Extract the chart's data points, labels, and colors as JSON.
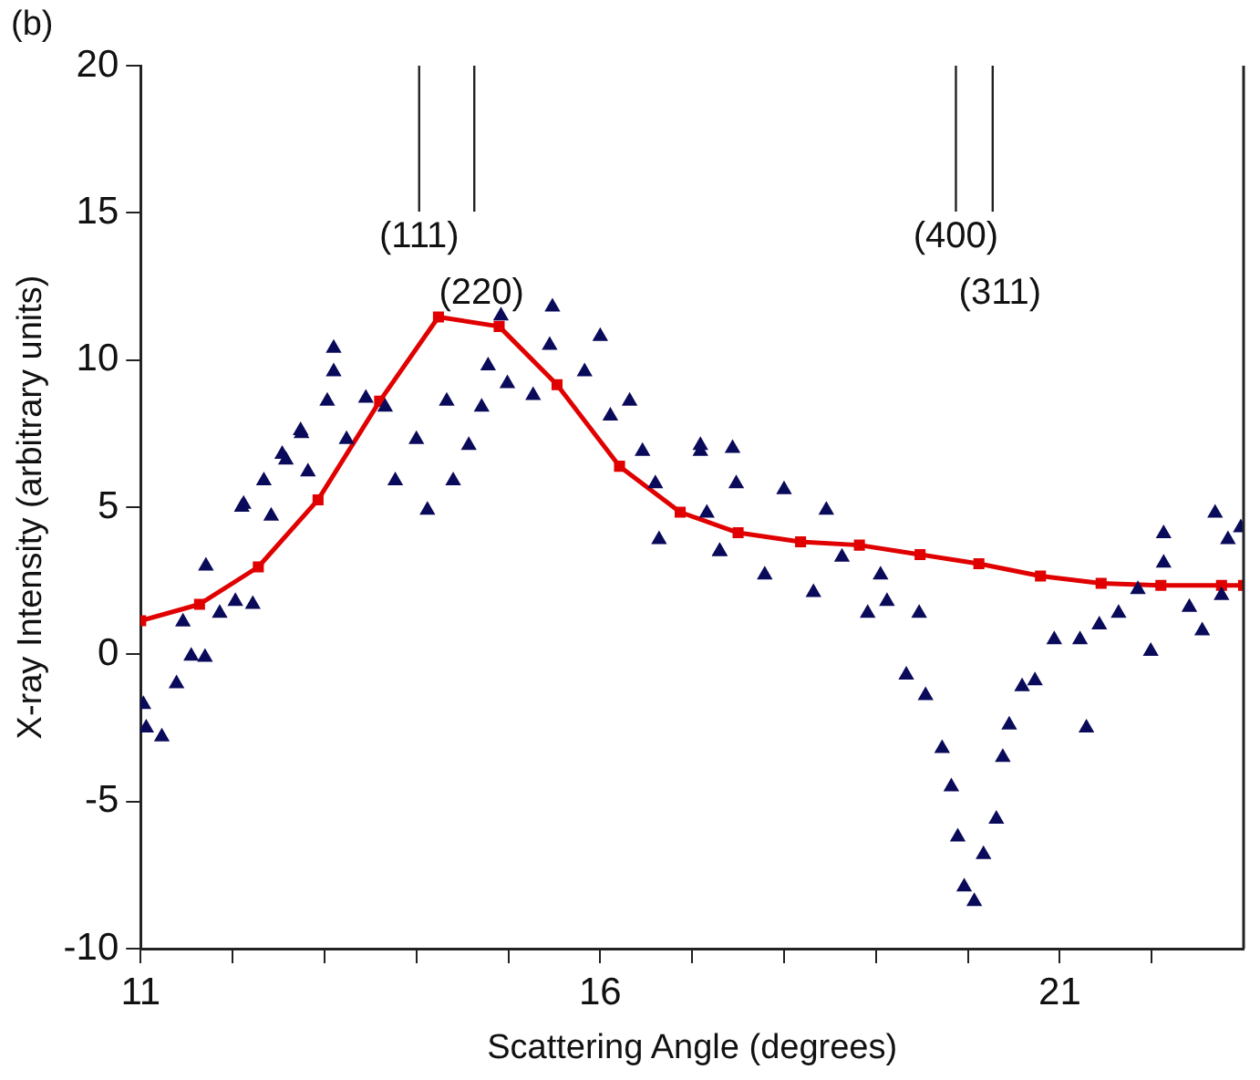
{
  "chart_data": {
    "type": "scatter",
    "title": "(b)",
    "xlabel": "Scattering Angle (degrees)",
    "ylabel": "X-ray Intensity (arbitrary units)",
    "xlim": [
      11,
      23
    ],
    "xticks": [
      11,
      {
        "value": 12,
        "label": null
      },
      {
        "value": 13,
        "label": null
      },
      {
        "value": 14,
        "label": null
      },
      {
        "value": 15,
        "label": null
      },
      16,
      {
        "value": 17,
        "label": null
      },
      {
        "value": 18,
        "label": null
      },
      {
        "value": 19,
        "label": null
      },
      {
        "value": 20,
        "label": null
      },
      21,
      {
        "value": 22,
        "label": null
      }
    ],
    "ylim": [
      -10,
      20
    ],
    "yticks": [
      -10,
      -5,
      0,
      5,
      10,
      15,
      20
    ],
    "grid": false,
    "legend": false,
    "ref_lines": [
      {
        "axis": "x",
        "value": 14.03
      },
      {
        "axis": "x",
        "value": 14.63
      },
      {
        "axis": "x",
        "value": 19.87
      },
      {
        "axis": "x",
        "value": 20.27
      }
    ],
    "annotations": [
      "(111)",
      "(220)",
      "(400)",
      "(311)"
    ],
    "series": [
      {
        "type": "scatter",
        "color": "#0a0a5a",
        "marker": "triangle",
        "x": [
          11.03,
          11.06,
          11.23,
          11.39,
          11.55,
          11.46,
          11.71,
          11.86,
          12.03,
          12.1,
          12.22,
          12.34,
          12.42,
          12.58,
          12.74,
          12.82,
          11.7,
          12.12,
          12.54,
          12.75,
          13.03,
          13.1,
          13.1,
          13.24,
          13.45,
          13.66,
          13.77,
          14.0,
          14.12,
          14.33,
          14.4,
          14.57,
          14.71,
          14.78,
          14.92,
          14.99,
          15.27,
          15.48,
          15.45,
          15.83,
          16.0,
          16.11,
          16.32,
          16.46,
          16.6,
          16.64,
          17.09,
          17.16,
          17.3,
          17.48,
          17.09,
          17.44,
          17.3,
          17.79,
          18.0,
          18.46,
          18.32,
          18.63,
          19.05,
          18.91,
          19.12,
          19.47,
          19.33,
          19.54,
          19.72,
          19.82,
          19.89,
          19.96,
          20.07,
          20.17,
          20.31,
          20.38,
          20.45,
          20.59,
          20.73,
          20.94,
          21.22,
          21.29,
          21.43,
          21.64,
          21.85,
          22.13,
          21.99,
          22.13,
          22.55,
          22.41,
          22.69,
          22.83,
          22.97,
          22.76
        ],
        "values": [
          -1.7,
          -2.5,
          -2.8,
          -1.0,
          -0.06,
          1.1,
          3.0,
          1.4,
          1.8,
          5.0,
          1.7,
          5.9,
          4.7,
          6.6,
          7.6,
          6.2,
          -0.1,
          5.1,
          6.8,
          7.5,
          8.6,
          10.4,
          9.6,
          7.3,
          8.7,
          8.4,
          5.9,
          7.3,
          4.9,
          8.6,
          5.9,
          7.1,
          8.4,
          9.8,
          11.5,
          9.2,
          8.8,
          11.8,
          10.5,
          9.6,
          10.8,
          8.1,
          8.6,
          6.9,
          5.8,
          3.9,
          7.1,
          4.8,
          3.5,
          5.8,
          6.9,
          7.0,
          3.5,
          2.7,
          5.6,
          4.9,
          2.1,
          3.3,
          2.7,
          1.4,
          1.8,
          1.4,
          -0.7,
          -1.4,
          -3.2,
          -4.5,
          -6.2,
          -7.9,
          -8.4,
          -6.8,
          -5.6,
          -3.5,
          -2.4,
          -1.1,
          -0.9,
          0.5,
          0.5,
          -2.5,
          1.0,
          1.4,
          2.2,
          4.1,
          0.1,
          3.1,
          0.8,
          1.6,
          4.8,
          3.9,
          4.3,
          2.0
        ]
      },
      {
        "type": "line",
        "color": "#e00000",
        "marker": "square",
        "line_style": "solid",
        "x": [
          11,
          11.64,
          12.28,
          12.93,
          13.6,
          14.24,
          14.9,
          15.53,
          16.21,
          16.87,
          17.5,
          18.18,
          18.82,
          19.48,
          20.12,
          20.79,
          21.45,
          22.1,
          22.76,
          23
        ],
        "values": [
          1.14,
          1.7,
          2.97,
          5.25,
          8.6,
          11.46,
          11.14,
          9.16,
          6.39,
          4.83,
          4.13,
          3.82,
          3.71,
          3.39,
          3.08,
          2.66,
          2.41,
          2.34,
          2.34,
          2.34
        ]
      }
    ]
  }
}
